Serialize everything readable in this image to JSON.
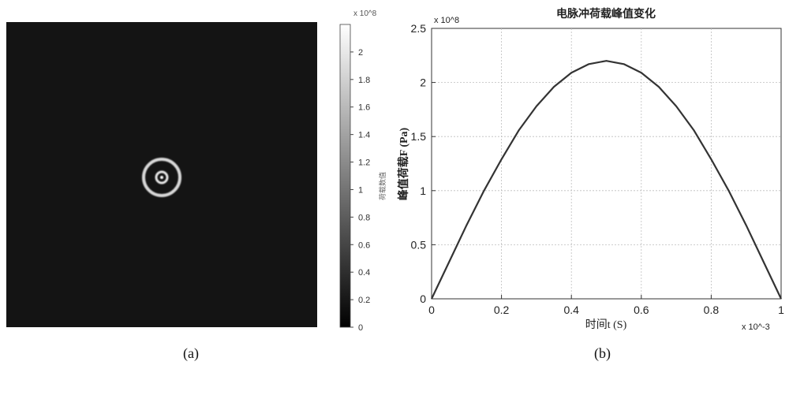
{
  "figure": {
    "panel_a_label": "(a)",
    "panel_b_label": "(b)"
  },
  "chart_data": [
    {
      "type": "heatmap",
      "title": "",
      "colormap": "gray",
      "background_color": "#141414",
      "feature": "concentric bright rings (outer ring and inner ring with bright center) near image center",
      "colorbar": {
        "label": "荷载数值",
        "multiplier": "x 10^8",
        "ticks": [
          0,
          0.2,
          0.4,
          0.6,
          0.8,
          1,
          1.2,
          1.4,
          1.6,
          1.8,
          2
        ],
        "tick_labels": [
          "0",
          "0.2",
          "0.4",
          "0.6",
          "0.8",
          "1",
          "1.2",
          "1.4",
          "1.6",
          "1.8",
          "2"
        ],
        "range": [
          0,
          2.2
        ]
      }
    },
    {
      "type": "line",
      "title": "电脉冲荷载峰值变化",
      "xlabel": "时间t (S)",
      "ylabel": "峰值荷载F (Pa)",
      "x_multiplier": "x 10^-3",
      "y_multiplier": "x 10^8",
      "xlim": [
        0,
        1
      ],
      "ylim": [
        0,
        2.5
      ],
      "xticks": [
        "0",
        "0.2",
        "0.4",
        "0.6",
        "0.8",
        "1"
      ],
      "yticks": [
        "0",
        "0.5",
        "1",
        "1.5",
        "2",
        "2.5"
      ],
      "grid": true,
      "line_color": "#333333",
      "series": [
        {
          "x": [
            0,
            0.05,
            0.1,
            0.15,
            0.2,
            0.25,
            0.3,
            0.35,
            0.4,
            0.45,
            0.5,
            0.55,
            0.6,
            0.65,
            0.7,
            0.75,
            0.8,
            0.85,
            0.9,
            0.95,
            1
          ],
          "values": [
            0,
            0.34,
            0.68,
            1.0,
            1.29,
            1.56,
            1.78,
            1.96,
            2.09,
            2.17,
            2.2,
            2.17,
            2.09,
            1.96,
            1.78,
            1.56,
            1.29,
            1.0,
            0.68,
            0.34,
            0
          ]
        }
      ]
    }
  ]
}
